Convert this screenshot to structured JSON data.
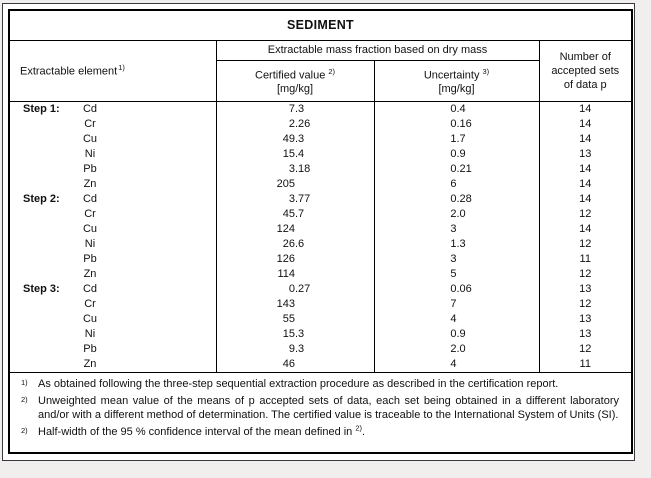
{
  "title": "SEDIMENT",
  "table": {
    "header": {
      "element_label": "Extractable element",
      "element_sup": "1)",
      "group_label": "Extractable mass fraction based on dry mass",
      "certified_label": "Certified value",
      "certified_sup": "2)",
      "certified_unit": "[mg/kg]",
      "uncertainty_label": "Uncertainty",
      "uncertainty_sup": "3)",
      "uncertainty_unit": "[mg/kg]",
      "sets_label": "Number of accepted sets of data p"
    },
    "rows": [
      {
        "step": "Step 1:",
        "element": "Cd",
        "certified": "7.3",
        "uncertainty": "0.4",
        "sets": "14"
      },
      {
        "step": "",
        "element": "Cr",
        "certified": "2.26",
        "uncertainty": "0.16",
        "sets": "14"
      },
      {
        "step": "",
        "element": "Cu",
        "certified": "49.3",
        "uncertainty": "1.7",
        "sets": "14"
      },
      {
        "step": "",
        "element": "Ni",
        "certified": "15.4",
        "uncertainty": "0.9",
        "sets": "13"
      },
      {
        "step": "",
        "element": "Pb",
        "certified": "3.18",
        "uncertainty": "0.21",
        "sets": "14"
      },
      {
        "step": "",
        "element": "Zn",
        "certified": "205",
        "uncertainty": "6",
        "sets": "14"
      },
      {
        "step": "Step 2:",
        "element": "Cd",
        "certified": "3.77",
        "uncertainty": "0.28",
        "sets": "14"
      },
      {
        "step": "",
        "element": "Cr",
        "certified": "45.7",
        "uncertainty": "2.0",
        "sets": "12"
      },
      {
        "step": "",
        "element": "Cu",
        "certified": "124",
        "uncertainty": "3",
        "sets": "14"
      },
      {
        "step": "",
        "element": "Ni",
        "certified": "26.6",
        "uncertainty": "1.3",
        "sets": "12"
      },
      {
        "step": "",
        "element": "Pb",
        "certified": "126",
        "uncertainty": "3",
        "sets": "11"
      },
      {
        "step": "",
        "element": "Zn",
        "certified": "114",
        "uncertainty": "5",
        "sets": "12"
      },
      {
        "step": "Step 3:",
        "element": "Cd",
        "certified": "0.27",
        "uncertainty": "0.06",
        "sets": "13"
      },
      {
        "step": "",
        "element": "Cr",
        "certified": "143",
        "uncertainty": "7",
        "sets": "12"
      },
      {
        "step": "",
        "element": "Cu",
        "certified": "55",
        "uncertainty": "4",
        "sets": "13"
      },
      {
        "step": "",
        "element": "Ni",
        "certified": "15.3",
        "uncertainty": "0.9",
        "sets": "13"
      },
      {
        "step": "",
        "element": "Pb",
        "certified": "9.3",
        "uncertainty": "2.0",
        "sets": "12"
      },
      {
        "step": "",
        "element": "Zn",
        "certified": "46",
        "uncertainty": "4",
        "sets": "11"
      }
    ]
  },
  "footnotes": [
    {
      "marker": "1)",
      "justify": false,
      "parts": [
        {
          "t": "As obtained following the three-step sequential extraction procedure as described in the certification report."
        }
      ]
    },
    {
      "marker": "2)",
      "justify": true,
      "parts": [
        {
          "t": "Unweighted mean value of the means of p accepted sets of data, each set being obtained in a different laboratory and/or with a different method of determination. The certified value is traceable to the International System of Units (SI)."
        }
      ]
    },
    {
      "marker": "2)",
      "justify": false,
      "parts": [
        {
          "t": "Half-width of the 95 % confidence interval of the mean defined in "
        },
        {
          "sup": "2)"
        },
        {
          "t": "."
        }
      ]
    }
  ],
  "colors": {
    "page_bg": "#f0efed",
    "frame_border": "#3a3a3c",
    "table_border": "#000000",
    "table_bg": "#ffffff",
    "text": "#111111"
  }
}
